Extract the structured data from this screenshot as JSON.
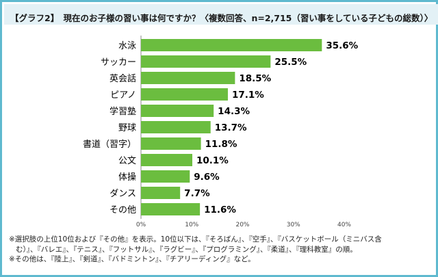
{
  "title": "【グラフ2】　現在のお子様の習い事は何ですか？〈複数回答、n=2,715（習い事をしている子どもの総数）〉",
  "chart_data": {
    "type": "bar",
    "orientation": "horizontal",
    "categories": [
      "水泳",
      "サッカー",
      "英会話",
      "ピアノ",
      "学習塾",
      "野球",
      "書道（習字）",
      "公文",
      "体操",
      "ダンス",
      "その他"
    ],
    "values": [
      35.6,
      25.5,
      18.5,
      17.1,
      14.3,
      13.7,
      11.8,
      10.1,
      9.6,
      7.7,
      11.6
    ],
    "value_labels": [
      "35.6%",
      "25.5%",
      "18.5%",
      "17.1%",
      "14.3%",
      "13.7%",
      "11.8%",
      "10.1%",
      "9.6%",
      "7.7%",
      "11.6%"
    ],
    "xlim": [
      0,
      40
    ],
    "ticks": [
      0,
      10,
      20,
      30,
      40
    ],
    "tick_labels": [
      "0%",
      "10%",
      "20%",
      "30%",
      "40%"
    ],
    "bar_color": "#6bbd3f",
    "grid": false
  },
  "notes": [
    "※選択肢の上位10位および『その他』を表示。10位以下は、『そろばん』、『空手』、『バスケットボール（ミニバス含",
    "む）』、『バレエ』、『テニス』、『フットサル』、『ラグビー』、『プログラミング』、『柔道』、『理科教室』の順。",
    "※その他は、『陸上』、『剣道』、『バドミントン』、『チアリーディング』など。"
  ],
  "colors": {
    "frame": "#5fb9cf",
    "title_bg": "#e3f1f6"
  }
}
